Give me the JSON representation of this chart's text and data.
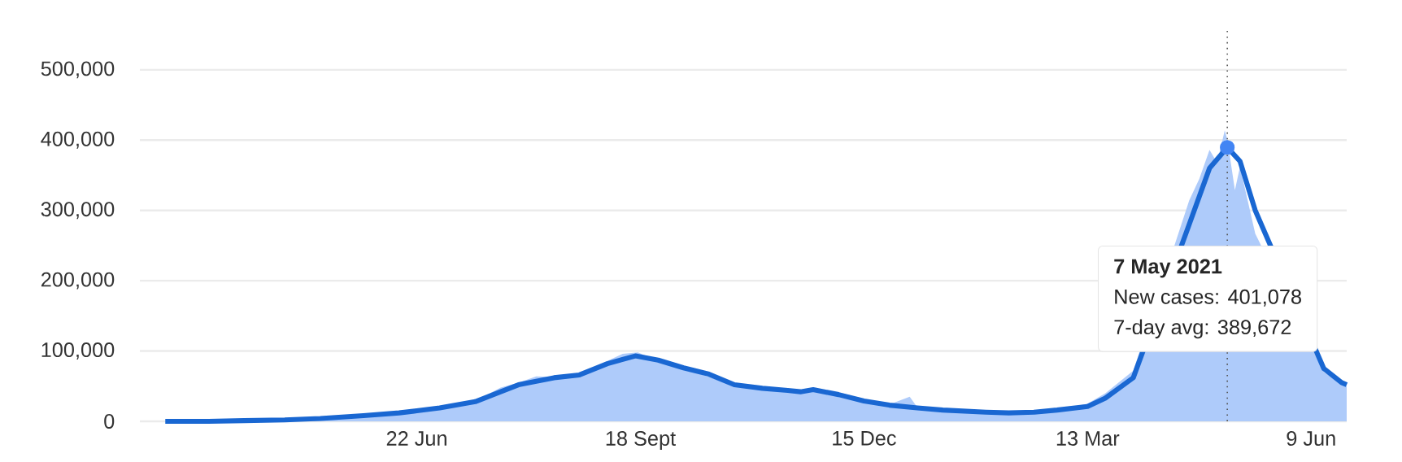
{
  "chart_data": {
    "type": "line",
    "marker": "none",
    "line_style": "solid",
    "grid": "y",
    "xlim": [
      "2020-03-05",
      "2021-06-23"
    ],
    "xticks": [
      {
        "value": "2020-06-22",
        "label": "22 Jun"
      },
      {
        "value": "2020-09-18",
        "label": "18 Sept"
      },
      {
        "value": "2020-12-15",
        "label": "15 Dec"
      },
      {
        "value": "2021-03-13",
        "label": "13 Mar"
      },
      {
        "value": "2021-06-09",
        "label": "9 Jun"
      }
    ],
    "ylim": [
      0,
      560000
    ],
    "yticks": [
      {
        "value": 0,
        "label": "0"
      },
      {
        "value": 100000,
        "label": "100,000"
      },
      {
        "value": 200000,
        "label": "200,000"
      },
      {
        "value": 300000,
        "label": "300,000"
      },
      {
        "value": 400000,
        "label": "400,000"
      },
      {
        "value": 500000,
        "label": "500,000"
      }
    ],
    "ref_lines": [
      {
        "axis": "x",
        "value": "2021-05-07",
        "color": "#555555",
        "line_style": "dotted"
      }
    ],
    "annotations": [
      "7 May 2021",
      "New cases: 401,078",
      "7-day avg: 389,672"
    ],
    "series": [
      {
        "type": "area",
        "color": "#aecbfa",
        "x": [
          "2020-03-15",
          "2020-04-01",
          "2020-04-15",
          "2020-05-01",
          "2020-05-15",
          "2020-06-01",
          "2020-06-15",
          "2020-06-22",
          "2020-07-01",
          "2020-07-15",
          "2020-07-25",
          "2020-08-01",
          "2020-08-08",
          "2020-08-15",
          "2020-08-25",
          "2020-09-05",
          "2020-09-11",
          "2020-09-17",
          "2020-09-25",
          "2020-10-05",
          "2020-10-15",
          "2020-10-25",
          "2020-11-05",
          "2020-11-15",
          "2020-11-25",
          "2020-12-05",
          "2020-12-15",
          "2020-12-25",
          "2021-01-02",
          "2021-01-05",
          "2021-01-10",
          "2021-01-15",
          "2021-02-01",
          "2021-02-10",
          "2021-02-20",
          "2021-03-01",
          "2021-03-13",
          "2021-03-20",
          "2021-03-31",
          "2021-04-07",
          "2021-04-15",
          "2021-04-22",
          "2021-04-26",
          "2021-04-30",
          "2021-05-03",
          "2021-05-06",
          "2021-05-07",
          "2021-05-10",
          "2021-05-12",
          "2021-05-18",
          "2021-05-24",
          "2021-05-31",
          "2021-06-07",
          "2021-06-14",
          "2021-06-21",
          "2021-06-23"
        ],
        "values": [
          0,
          0,
          1000,
          2000,
          4000,
          8000,
          12000,
          15000,
          19000,
          29000,
          48000,
          55000,
          64000,
          63000,
          67000,
          86000,
          96000,
          98000,
          86000,
          75000,
          63000,
          50000,
          48000,
          41000,
          44000,
          36000,
          27000,
          24000,
          35000,
          20000,
          17000,
          15000,
          12000,
          11000,
          13000,
          16000,
          25000,
          40000,
          72000,
          null,
          null,
          314000,
          345000,
          386000,
          368000,
          414000,
          401078,
          329000,
          362000,
          267000,
          null,
          null,
          null,
          70000,
          53000,
          50000
        ]
      },
      {
        "color": "#1967d2",
        "x": [
          "2020-03-15",
          "2020-04-01",
          "2020-04-15",
          "2020-05-01",
          "2020-05-15",
          "2020-06-01",
          "2020-06-15",
          "2020-06-22",
          "2020-07-01",
          "2020-07-15",
          "2020-07-25",
          "2020-08-01",
          "2020-08-15",
          "2020-08-25",
          "2020-09-05",
          "2020-09-16",
          "2020-09-25",
          "2020-10-05",
          "2020-10-15",
          "2020-10-25",
          "2020-11-05",
          "2020-11-15",
          "2020-11-20",
          "2020-11-25",
          "2020-12-05",
          "2020-12-15",
          "2020-12-25",
          "2021-01-05",
          "2021-01-15",
          "2021-02-01",
          "2021-02-10",
          "2021-02-20",
          "2021-03-01",
          "2021-03-13",
          "2021-03-20",
          "2021-03-31",
          "2021-04-07",
          "2021-04-15",
          "2021-04-22",
          "2021-04-30",
          "2021-05-07",
          "2021-05-12",
          "2021-05-18",
          "2021-05-24",
          "2021-05-31",
          "2021-06-07",
          "2021-06-14",
          "2021-06-21",
          "2021-06-23"
        ],
        "values": [
          0,
          0,
          1000,
          2000,
          4000,
          8000,
          12000,
          15000,
          19000,
          28000,
          42000,
          52000,
          62000,
          66000,
          82000,
          93000,
          87000,
          76000,
          67000,
          52000,
          47000,
          44000,
          42000,
          45000,
          38000,
          29000,
          23000,
          19000,
          16000,
          13000,
          12000,
          13000,
          16000,
          21000,
          33000,
          62000,
          null,
          null,
          280000,
          360000,
          389672,
          370000,
          300000,
          null,
          null,
          null,
          75000,
          55000,
          52000
        ]
      },
      {
        "type": "scatter",
        "color": "#4285f4",
        "marker": "circle",
        "x": [
          "2021-05-07"
        ],
        "values": [
          389672
        ]
      }
    ]
  }
}
